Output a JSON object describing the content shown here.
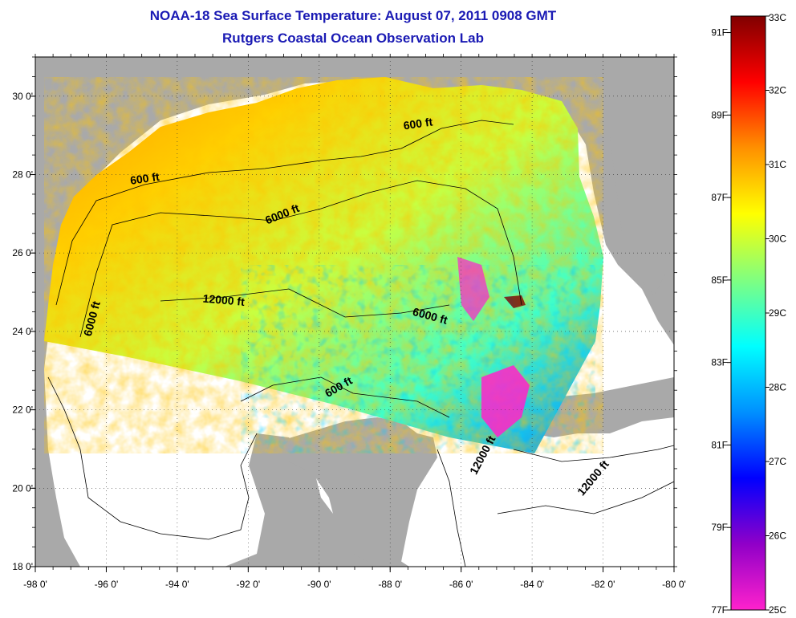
{
  "title_line1": "NOAA-18 Sea Surface Temperature:  August 07, 2011 0908 GMT",
  "title_line2": "Rutgers Coastal Ocean Observation Lab",
  "map": {
    "lon_range": [
      -98,
      -80
    ],
    "lat_range": [
      18,
      31
    ],
    "lon_ticks": [
      {
        "value": -98,
        "label": "-98 0'"
      },
      {
        "value": -96,
        "label": "-96 0'"
      },
      {
        "value": -94,
        "label": "-94 0'"
      },
      {
        "value": -92,
        "label": "-92 0'"
      },
      {
        "value": -90,
        "label": "-90 0'"
      },
      {
        "value": -88,
        "label": "-88 0'"
      },
      {
        "value": -86,
        "label": "-86 0'"
      },
      {
        "value": -84,
        "label": "-84 0'"
      },
      {
        "value": -82,
        "label": "-82 0'"
      },
      {
        "value": -80,
        "label": "-80 0'"
      }
    ],
    "lat_ticks": [
      {
        "value": 18,
        "label": "18 0'"
      },
      {
        "value": 20,
        "label": "20 0'"
      },
      {
        "value": 22,
        "label": "22 0'"
      },
      {
        "value": 24,
        "label": "24 0'"
      },
      {
        "value": 26,
        "label": "26 0'"
      },
      {
        "value": 28,
        "label": "28 0'"
      },
      {
        "value": 30,
        "label": "30 0'"
      }
    ],
    "grid": true,
    "land_color": "#a9a9a9",
    "no_data_color": "#ffffff",
    "contour_labels": [
      {
        "text": "600 ft",
        "lon": -94.9,
        "lat": 27.8,
        "angle": -8
      },
      {
        "text": "6000 ft",
        "lon": -91.0,
        "lat": 26.9,
        "angle": -22
      },
      {
        "text": "600 ft",
        "lon": -87.2,
        "lat": 29.2,
        "angle": -8
      },
      {
        "text": "12000 ft",
        "lon": -92.7,
        "lat": 24.7,
        "angle": 5
      },
      {
        "text": "6000 ft",
        "lon": -86.9,
        "lat": 24.3,
        "angle": 15
      },
      {
        "text": "6000 ft",
        "lon": -96.3,
        "lat": 24.3,
        "angle": -75
      },
      {
        "text": "600 ft",
        "lon": -89.4,
        "lat": 22.5,
        "angle": -30
      },
      {
        "text": "12000 ft",
        "lon": -85.3,
        "lat": 20.8,
        "angle": -62
      },
      {
        "text": "12000 ft",
        "lon": -82.2,
        "lat": 20.2,
        "angle": -50
      }
    ]
  },
  "colorbar": {
    "celsius": [
      "33C",
      "32C",
      "31C",
      "30C",
      "29C",
      "28C",
      "27C",
      "26C",
      "25C"
    ],
    "fahrenheit": [
      "91F",
      "89F",
      "87F",
      "85F",
      "83F",
      "81F",
      "79F",
      "77F"
    ],
    "c_min": 25,
    "c_max": 33,
    "colors": [
      "#ff22cc",
      "#9000c8",
      "#0000ff",
      "#0090ff",
      "#00ffff",
      "#80ff80",
      "#ffff00",
      "#ff9000",
      "#ff0000",
      "#800000"
    ]
  }
}
